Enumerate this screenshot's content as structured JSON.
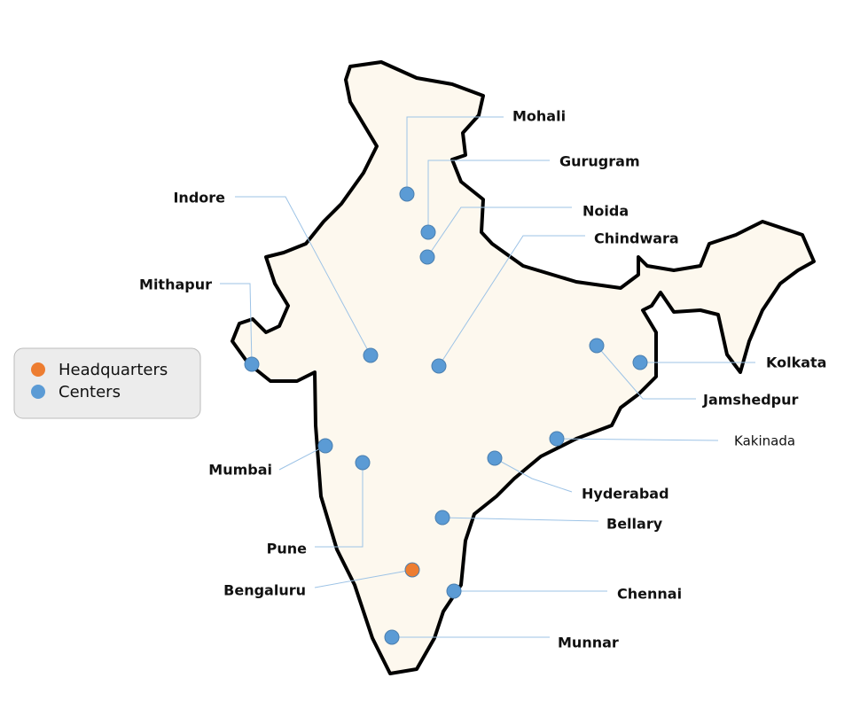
{
  "legend": {
    "items": [
      {
        "label": "Headquarters",
        "color": "#ed7d31"
      },
      {
        "label": "Centers",
        "color": "#5b9bd5"
      }
    ]
  },
  "cities": [
    {
      "name": "Mohali",
      "kind": "Centers"
    },
    {
      "name": "Gurugram",
      "kind": "Centers"
    },
    {
      "name": "Noida",
      "kind": "Centers"
    },
    {
      "name": "Chindwara",
      "kind": "Centers"
    },
    {
      "name": "Indore",
      "kind": "Centers"
    },
    {
      "name": "Mithapur",
      "kind": "Centers"
    },
    {
      "name": "Mumbai",
      "kind": "Centers"
    },
    {
      "name": "Pune",
      "kind": "Centers"
    },
    {
      "name": "Bengaluru",
      "kind": "Headquarters"
    },
    {
      "name": "Munnar",
      "kind": "Centers"
    },
    {
      "name": "Chennai",
      "kind": "Centers"
    },
    {
      "name": "Bellary",
      "kind": "Centers"
    },
    {
      "name": "Hyderabad",
      "kind": "Centers"
    },
    {
      "name": "Kakinada",
      "kind": "Centers"
    },
    {
      "name": "Jamshedpur",
      "kind": "Centers"
    },
    {
      "name": "Kolkata",
      "kind": "Centers"
    }
  ]
}
